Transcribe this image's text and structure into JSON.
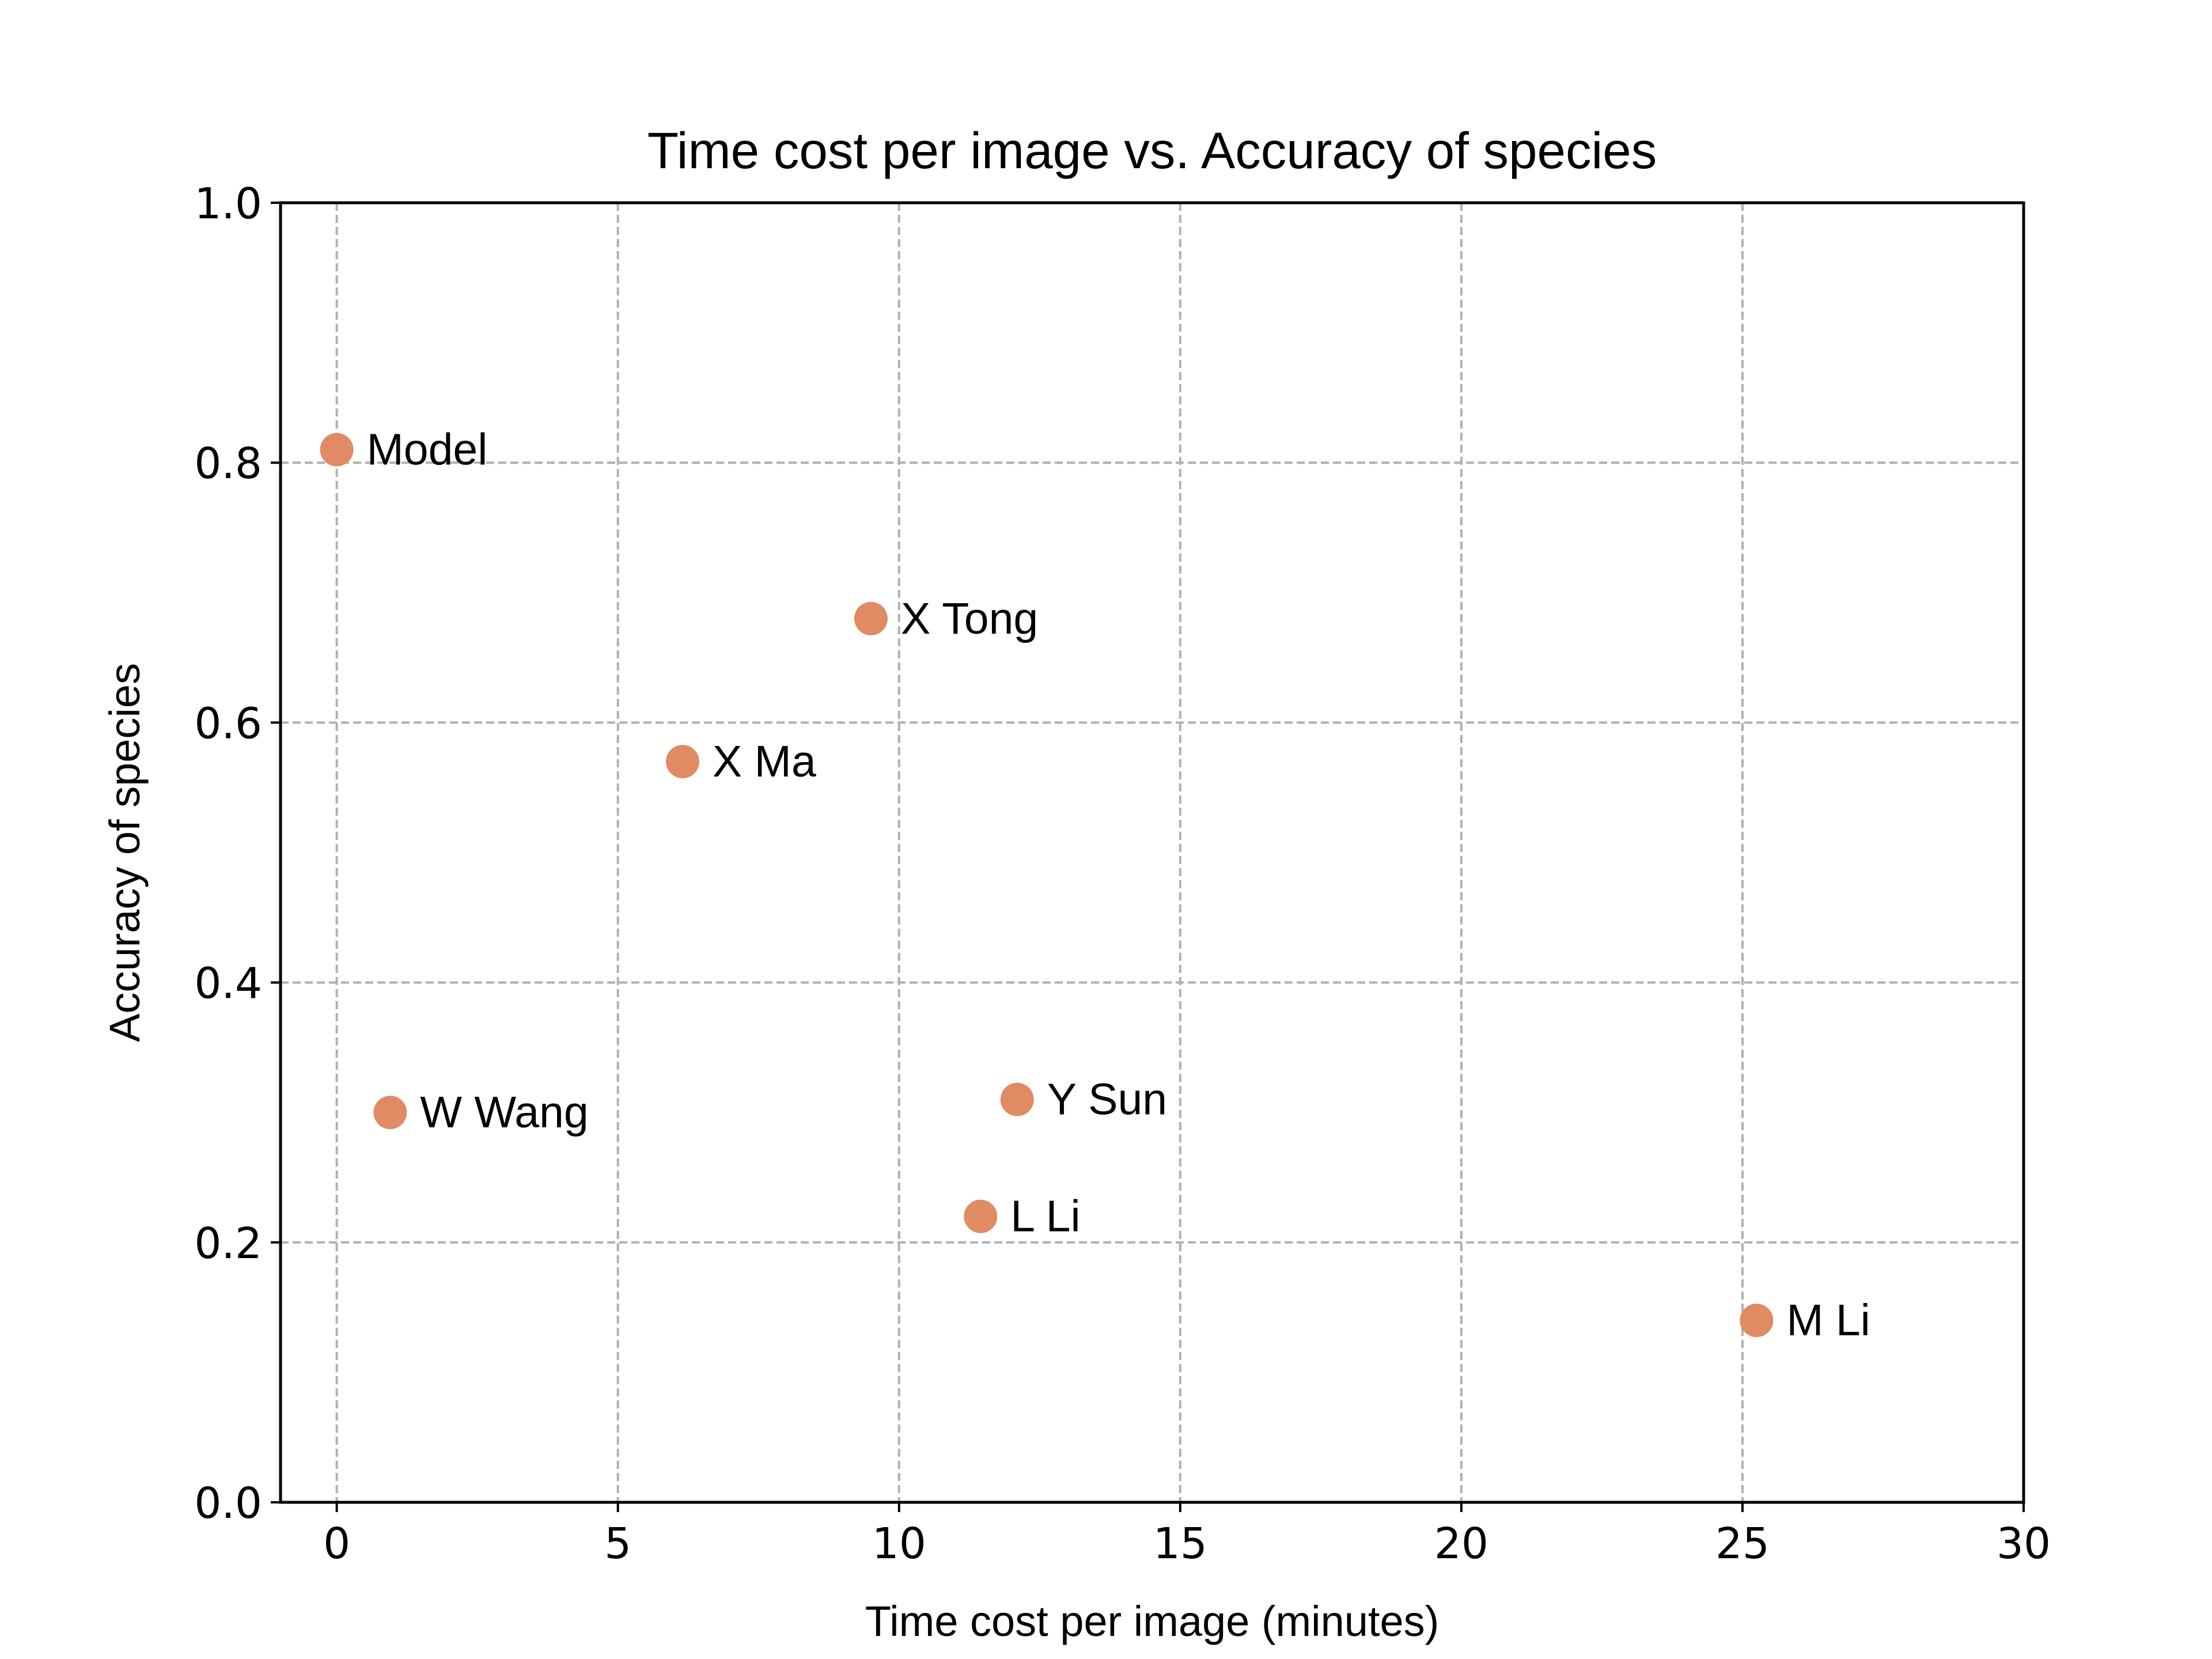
{
  "chart_data": {
    "type": "scatter",
    "title": "Time cost per image vs. Accuracy of species",
    "xlabel": "Time cost per image (minutes)",
    "ylabel": "Accuracy of species",
    "xlim": [
      -1,
      30
    ],
    "ylim": [
      0.0,
      1.0
    ],
    "xticks": [
      0,
      5,
      10,
      15,
      20,
      25,
      30
    ],
    "xtick_labels": [
      "0",
      "5",
      "10",
      "15",
      "20",
      "25",
      "30"
    ],
    "yticks": [
      0.0,
      0.2,
      0.4,
      0.6,
      0.8,
      1.0
    ],
    "ytick_labels": [
      "0.0",
      "0.2",
      "0.4",
      "0.6",
      "0.8",
      "1.0"
    ],
    "grid": true,
    "marker_color": "#e08b63",
    "points": [
      {
        "label": "Model",
        "x": 0.0,
        "y": 0.81
      },
      {
        "label": "X Tong",
        "x": 9.5,
        "y": 0.68
      },
      {
        "label": "X Ma",
        "x": 6.15,
        "y": 0.57
      },
      {
        "label": "W Wang",
        "x": 0.95,
        "y": 0.3
      },
      {
        "label": "Y Sun",
        "x": 12.1,
        "y": 0.31
      },
      {
        "label": "L Li",
        "x": 11.45,
        "y": 0.22
      },
      {
        "label": "M Li",
        "x": 25.25,
        "y": 0.14
      }
    ]
  }
}
